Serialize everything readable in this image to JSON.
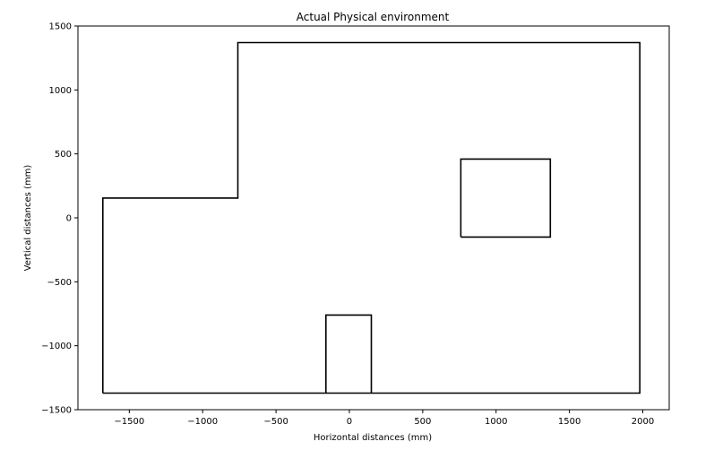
{
  "chart_data": {
    "type": "line",
    "title": "Actual Physical environment",
    "xlabel": "Horizontal distances (mm)",
    "ylabel": "Vertical distances (mm)",
    "xlim": [
      -1850,
      2180
    ],
    "ylim": [
      -1500,
      1500
    ],
    "xticks": [
      -1500,
      -1000,
      -500,
      0,
      500,
      1000,
      1500,
      2000
    ],
    "yticks": [
      -1500,
      -1000,
      -500,
      0,
      500,
      1000,
      1500
    ],
    "grid": false,
    "line_color": "#000000",
    "series": [
      {
        "points": [
          [
            -1680,
            -1370
          ],
          [
            -1680,
            155
          ],
          [
            -760,
            155
          ],
          [
            -760,
            1370
          ],
          [
            1980,
            1370
          ],
          [
            1980,
            -1370
          ],
          [
            -1680,
            -1370
          ]
        ]
      },
      {
        "points": [
          [
            -160,
            -1370
          ],
          [
            -160,
            -760
          ],
          [
            150,
            -760
          ],
          [
            150,
            -1370
          ]
        ]
      },
      {
        "points": [
          [
            760,
            -150
          ],
          [
            760,
            460
          ],
          [
            1370,
            460
          ],
          [
            1370,
            -150
          ],
          [
            760,
            -150
          ]
        ]
      }
    ]
  }
}
